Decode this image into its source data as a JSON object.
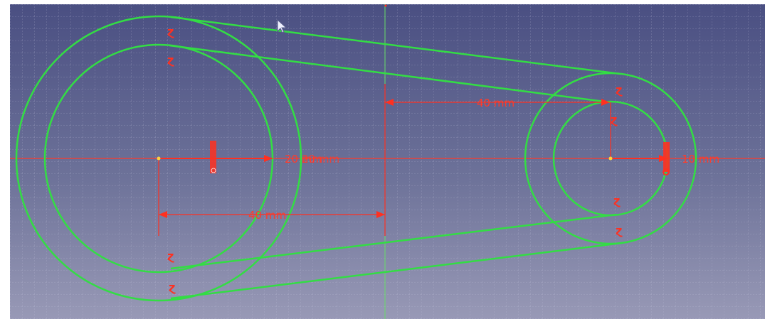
{
  "viewport": {
    "background_top": "#4a4f82",
    "background_bottom": "#9899b6",
    "grid_color": "#c8c8e0",
    "geometry_color": "#33dd44",
    "constraint_color": "#ff3020"
  },
  "dimensions": {
    "left_radius": "20 mm",
    "left_radius_overlap": "20 mm",
    "right_radius": "10 mm",
    "horizontal_distance": "40 mm",
    "upper_distance": "40 mm"
  },
  "constraint_icons": {
    "tangent": "tangent-icon",
    "origin": "origin-icon",
    "cursor": "mouse-cursor-icon"
  }
}
